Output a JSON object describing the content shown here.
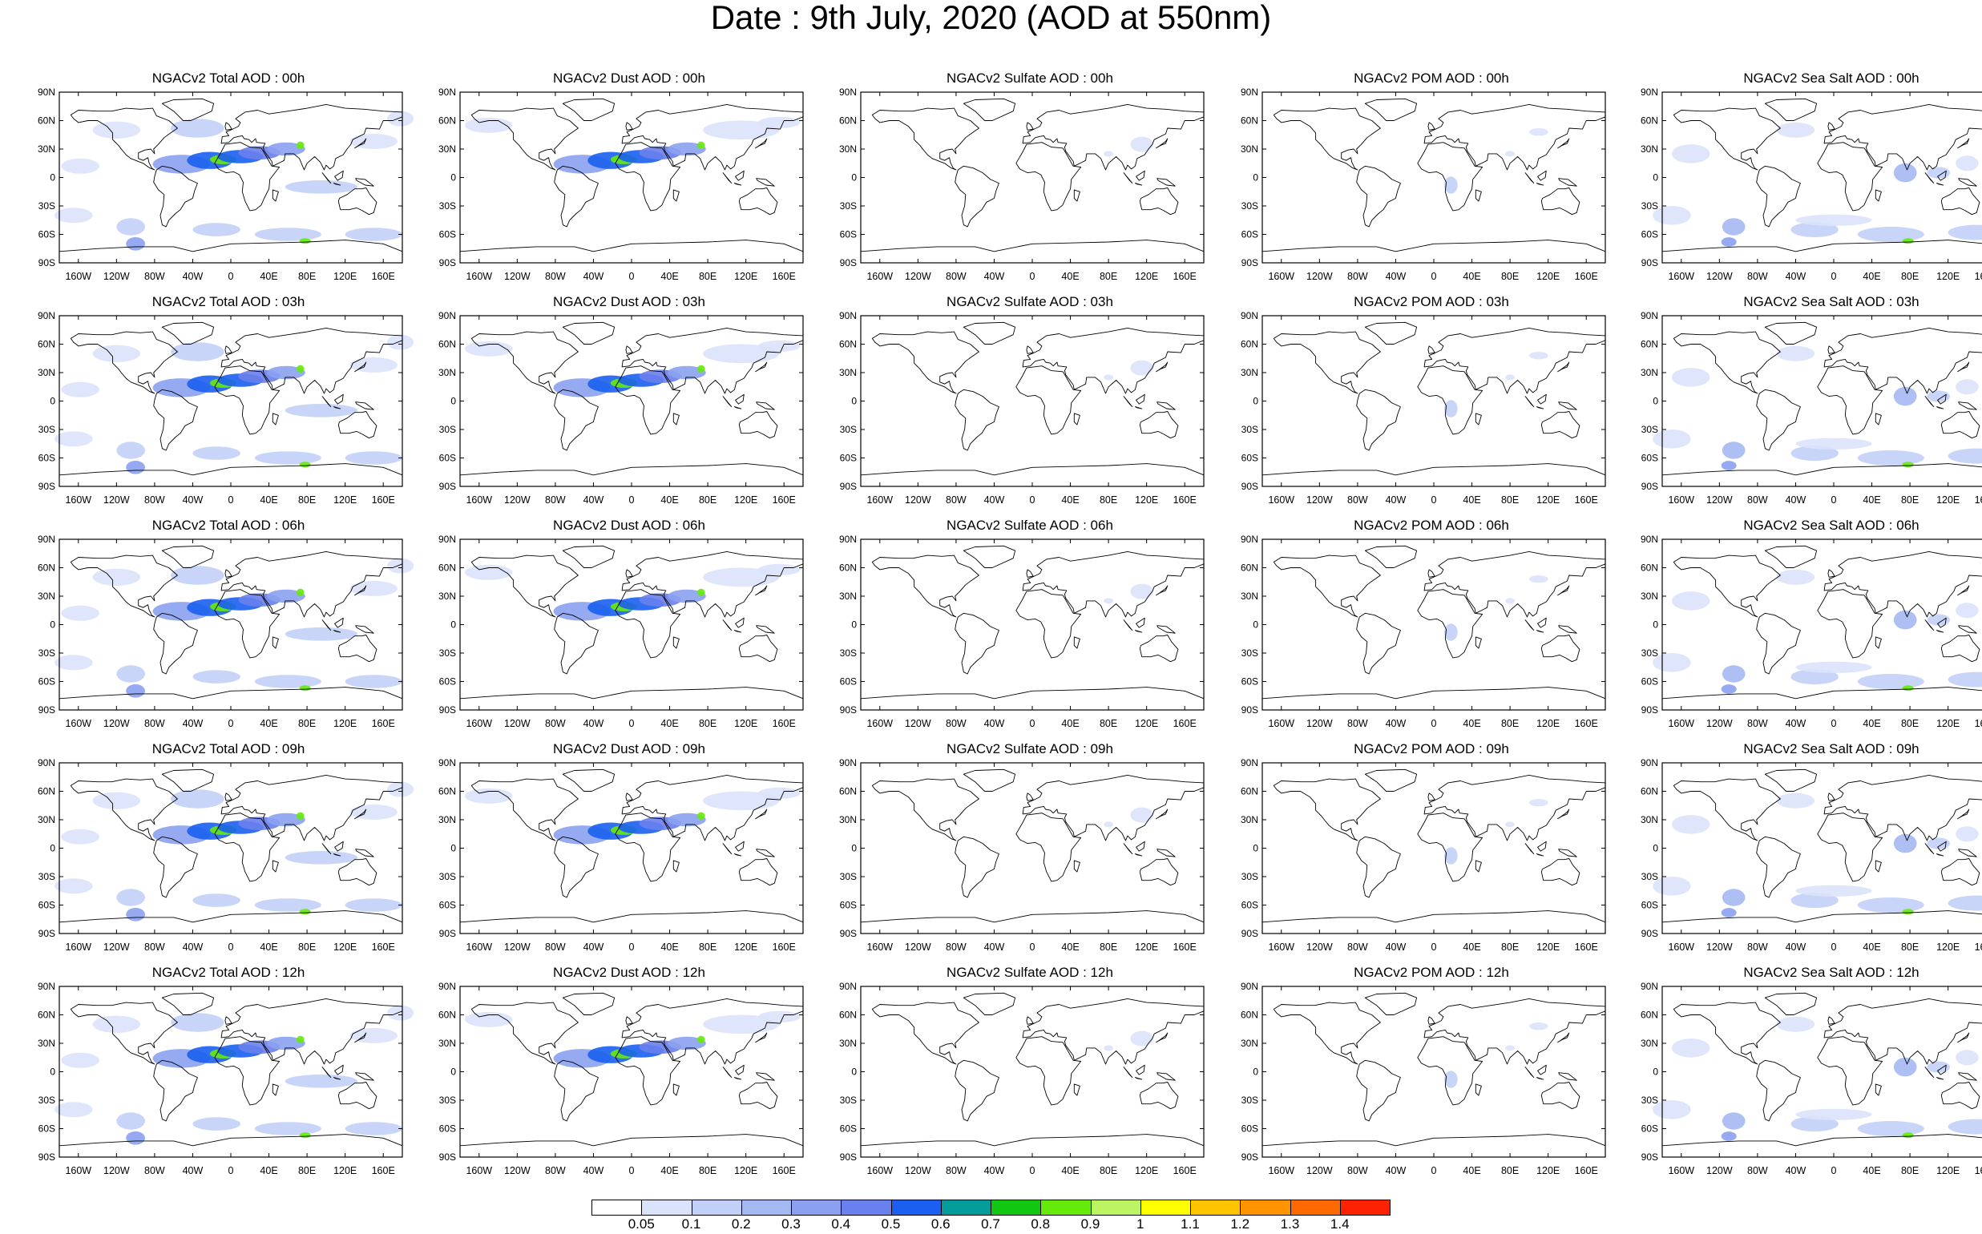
{
  "title": "Date : 9th July, 2020 (AOD at 550nm)",
  "map_axes": {
    "lat_labels": [
      "90N",
      "60N",
      "30N",
      "0",
      "30S",
      "60S",
      "90S"
    ],
    "lon_labels": [
      "160W",
      "120W",
      "80W",
      "40W",
      "0",
      "40E",
      "80E",
      "120E",
      "160E"
    ]
  },
  "panels": [
    [
      "NGACv2 Total AOD : 00h",
      "NGACv2 Dust AOD : 00h",
      "NGACv2 Sulfate AOD : 00h",
      "NGACv2 POM AOD : 00h",
      "NGACv2 Sea Salt AOD : 00h"
    ],
    [
      "NGACv2 Total AOD : 03h",
      "NGACv2 Dust AOD : 03h",
      "NGACv2 Sulfate AOD : 03h",
      "NGACv2 POM AOD : 03h",
      "NGACv2 Sea Salt AOD : 03h"
    ],
    [
      "NGACv2 Total AOD : 06h",
      "NGACv2 Dust AOD : 06h",
      "NGACv2 Sulfate AOD : 06h",
      "NGACv2 POM AOD : 06h",
      "NGACv2 Sea Salt AOD : 06h"
    ],
    [
      "NGACv2 Total AOD : 09h",
      "NGACv2 Dust AOD : 09h",
      "NGACv2 Sulfate AOD : 09h",
      "NGACv2 POM AOD : 09h",
      "NGACv2 Sea Salt  AOD : 09h"
    ],
    [
      "NGACv2 Total AOD : 12h",
      "NGACv2 Dust AOD : 12h",
      "NGACv2 Sulfate AOD : 12h",
      "NGACv2 POM  AOD : 12h",
      "NGACv2 Sea Salt AOD : 12h"
    ]
  ],
  "colorbar": {
    "labels": [
      "0.05",
      "0.1",
      "0.2",
      "0.3",
      "0.4",
      "0.5",
      "0.6",
      "0.7",
      "0.8",
      "0.9",
      "1",
      "1.1",
      "1.2",
      "1.3",
      "1.4"
    ],
    "colors": [
      "#ffffff",
      "#dbe3fb",
      "#c2d0f7",
      "#a4b8f2",
      "#8ba1f0",
      "#6a80ec",
      "#1a5ff0",
      "#049b9b",
      "#12c712",
      "#66ea0a",
      "#bdf562",
      "#ffff00",
      "#ffc400",
      "#ff9400",
      "#ff6a00",
      "#ff2200"
    ]
  }
}
